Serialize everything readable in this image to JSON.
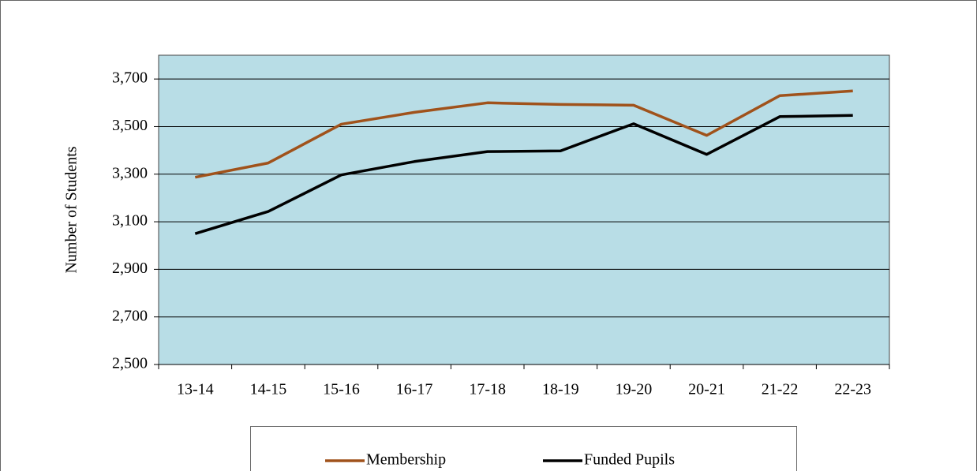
{
  "chart_data": {
    "type": "line",
    "y_label": "Number of Students",
    "categories": [
      "13-14",
      "14-15",
      "15-16",
      "16-17",
      "17-18",
      "18-19",
      "19-20",
      "20-21",
      "21-22",
      "22-23"
    ],
    "series": [
      {
        "name": "Membership",
        "color": "#a0521b",
        "values": [
          3287,
          3347,
          3510,
          3560,
          3600,
          3593,
          3590,
          3463,
          3630,
          3650
        ]
      },
      {
        "name": "Funded Pupils",
        "color": "#000000",
        "values": [
          3050,
          3143,
          3297,
          3353,
          3395,
          3398,
          3512,
          3383,
          3542,
          3547
        ]
      }
    ],
    "ylim": [
      2500,
      3800
    ],
    "yticks": [
      {
        "value": 2500,
        "label": "2,500"
      },
      {
        "value": 2700,
        "label": "2,700"
      },
      {
        "value": 2900,
        "label": "2,900"
      },
      {
        "value": 3100,
        "label": "3,100"
      },
      {
        "value": 3300,
        "label": "3,300"
      },
      {
        "value": 3500,
        "label": "3,500"
      },
      {
        "value": 3700,
        "label": "3,700"
      }
    ],
    "grid": true,
    "legend": "bottom"
  }
}
